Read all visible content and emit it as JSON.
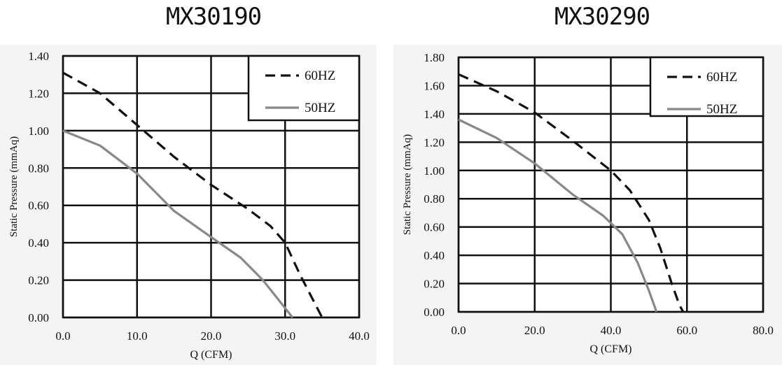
{
  "chart_data": [
    {
      "type": "line",
      "title": "MX30190",
      "xlabel": "Q (CFM)",
      "ylabel": "Static Pressure (mmAq)",
      "xlim": [
        0,
        40
      ],
      "ylim": [
        0,
        1.4
      ],
      "xticks": [
        "0.0",
        "10.0",
        "20.0",
        "30.0",
        "40.0"
      ],
      "yticks": [
        "0.00",
        "0.20",
        "0.40",
        "0.60",
        "0.80",
        "1.00",
        "1.20",
        "1.40"
      ],
      "grid": true,
      "legend": "top-right",
      "series": [
        {
          "name": "60HZ",
          "style": "dashed",
          "color": "#111111",
          "points": [
            [
              0,
              1.31
            ],
            [
              5,
              1.2
            ],
            [
              10,
              1.03
            ],
            [
              15,
              0.86
            ],
            [
              20,
              0.71
            ],
            [
              25,
              0.58
            ],
            [
              28,
              0.49
            ],
            [
              30,
              0.4
            ],
            [
              32,
              0.23
            ],
            [
              35,
              0.0
            ]
          ]
        },
        {
          "name": "50HZ",
          "style": "solid",
          "color": "#888888",
          "points": [
            [
              0,
              1.0
            ],
            [
              5,
              0.92
            ],
            [
              10,
              0.77
            ],
            [
              15,
              0.57
            ],
            [
              20,
              0.43
            ],
            [
              24,
              0.32
            ],
            [
              27,
              0.2
            ],
            [
              29,
              0.1
            ],
            [
              31,
              0.0
            ]
          ]
        }
      ]
    },
    {
      "type": "line",
      "title": "MX30290",
      "xlabel": "Q (CFM)",
      "ylabel": "Static Pressure (mmAq)",
      "xlim": [
        0,
        80
      ],
      "ylim": [
        0,
        1.8
      ],
      "xticks": [
        "0.0",
        "20.0",
        "40.0",
        "60.0",
        "80.0"
      ],
      "yticks": [
        "0.00",
        "0.20",
        "0.40",
        "0.60",
        "0.80",
        "1.00",
        "1.20",
        "1.40",
        "1.60",
        "1.80"
      ],
      "grid": true,
      "legend": "top-right",
      "series": [
        {
          "name": "60HZ",
          "style": "dashed",
          "color": "#111111",
          "points": [
            [
              0,
              1.68
            ],
            [
              10,
              1.56
            ],
            [
              20,
              1.41
            ],
            [
              30,
              1.21
            ],
            [
              40,
              1.0
            ],
            [
              45,
              0.86
            ],
            [
              50,
              0.65
            ],
            [
              53,
              0.45
            ],
            [
              56,
              0.2
            ],
            [
              58,
              0.05
            ],
            [
              59,
              0.0
            ]
          ]
        },
        {
          "name": "50HZ",
          "style": "solid",
          "color": "#888888",
          "points": [
            [
              0,
              1.36
            ],
            [
              10,
              1.23
            ],
            [
              20,
              1.05
            ],
            [
              30,
              0.83
            ],
            [
              38,
              0.68
            ],
            [
              43,
              0.55
            ],
            [
              47,
              0.35
            ],
            [
              50,
              0.15
            ],
            [
              52,
              0.0
            ]
          ]
        }
      ]
    }
  ]
}
